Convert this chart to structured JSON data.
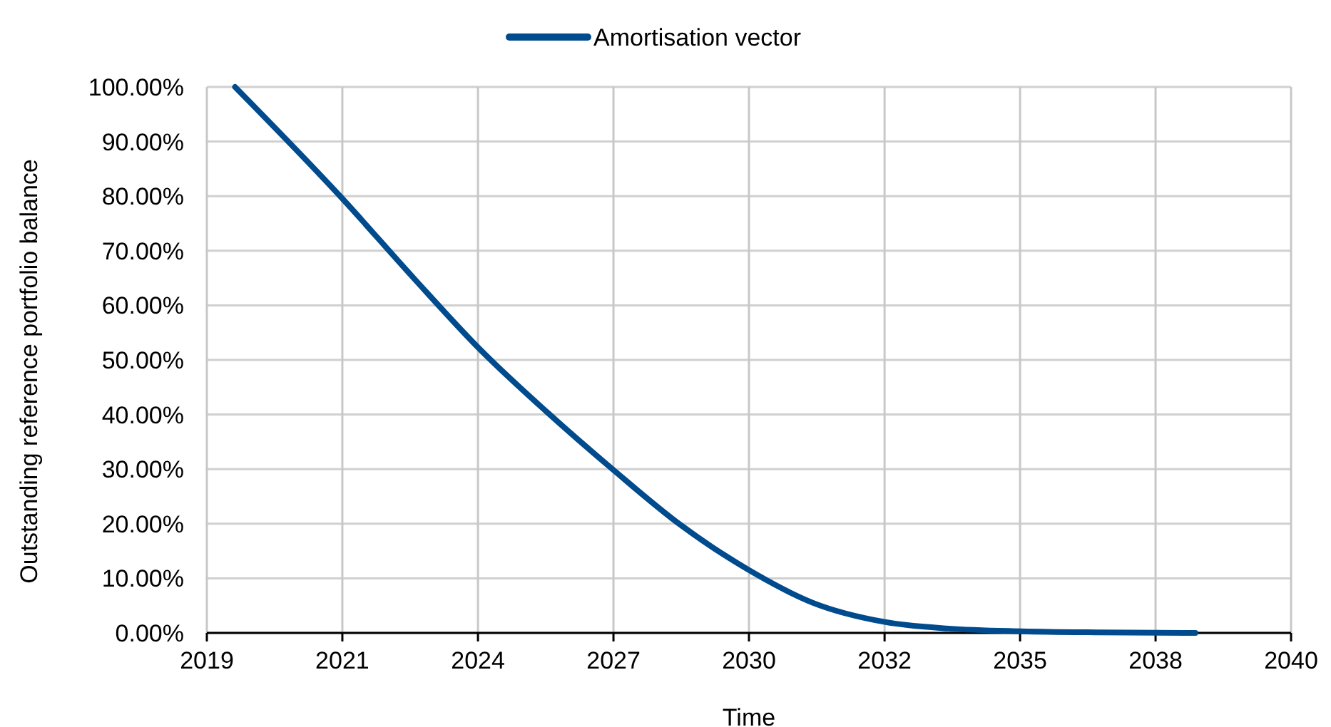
{
  "chart_data": {
    "type": "line",
    "xlabel": "Time",
    "ylabel": "Outstanding reference portfolio balance",
    "xlim": [
      "2019-01-19",
      "2040-12-16"
    ],
    "xticks": [
      {
        "value": "2019-01-19",
        "label": "2019"
      },
      {
        "value": "2021-10-15",
        "label": "2021"
      },
      {
        "value": "2024-07-12",
        "label": "2024"
      },
      {
        "value": "2027-04-08",
        "label": "2027"
      },
      {
        "value": "2030-01-02",
        "label": "2030"
      },
      {
        "value": "2032-09-29",
        "label": "2032"
      },
      {
        "value": "2035-06-26",
        "label": "2035"
      },
      {
        "value": "2038-03-22",
        "label": "2038"
      },
      {
        "value": "2040-12-16",
        "label": "2040"
      }
    ],
    "ylim": [
      0,
      100
    ],
    "yticks": [
      {
        "value": 0,
        "label": "0.00%"
      },
      {
        "value": 10,
        "label": "10.00%"
      },
      {
        "value": 20,
        "label": "20.00%"
      },
      {
        "value": 30,
        "label": "30.00%"
      },
      {
        "value": 40,
        "label": "40.00%"
      },
      {
        "value": 50,
        "label": "50.00%"
      },
      {
        "value": 60,
        "label": "60.00%"
      },
      {
        "value": 70,
        "label": "70.00%"
      },
      {
        "value": 80,
        "label": "80.00%"
      },
      {
        "value": 90,
        "label": "90.00%"
      },
      {
        "value": 100,
        "label": "100.00%"
      }
    ],
    "grid": true,
    "legend": "top",
    "marker": "none",
    "line_style": "solid",
    "series": [
      {
        "name": "Amortisation vector",
        "color": "#004b8d",
        "x": [
          "2019-08-15",
          "2021-10-17",
          "2023-03-25",
          "2024-07-24",
          "2025-12-01",
          "2027-04-10",
          "2028-08-14",
          "2029-12-20",
          "2031-04-20",
          "2032-10-01",
          "2034-01-15",
          "2035-07-05",
          "2037-01-25",
          "2039-01-10"
        ],
        "values": [
          100,
          79.5,
          65,
          52,
          40.5,
          29.8,
          19.8,
          11.7,
          5.5,
          2,
          0.8,
          0.3,
          0.1,
          0
        ]
      }
    ]
  }
}
